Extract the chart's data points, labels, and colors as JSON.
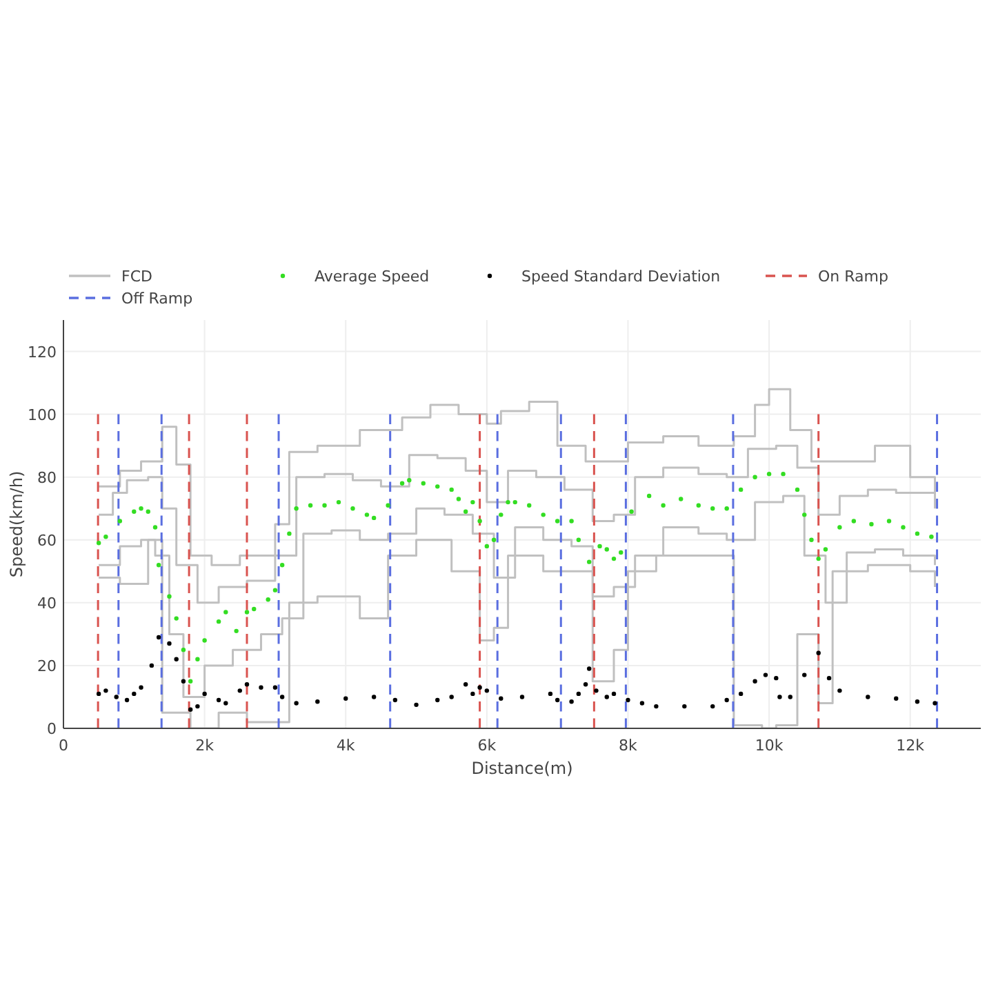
{
  "chart_data": {
    "type": "step",
    "xlabel": "Distance(m)",
    "ylabel": "Speed(km/h)",
    "xlim": [
      0,
      13000
    ],
    "ylim": [
      0,
      130
    ],
    "xticks": [
      0,
      {
        "value": 2000,
        "label": "2k"
      },
      {
        "value": 4000,
        "label": "4k"
      },
      {
        "value": 6000,
        "label": "6k"
      },
      {
        "value": 8000,
        "label": "8k"
      },
      {
        "value": 10000,
        "label": "10k"
      },
      {
        "value": 12000,
        "label": "12k"
      }
    ],
    "yticks": [
      0,
      20,
      40,
      60,
      80,
      100,
      120
    ],
    "grid": true,
    "legend": "top",
    "series": [
      {
        "name": "FCD",
        "color": "#c0c0c0",
        "x": [
          500,
          800,
          1100,
          1400,
          1600,
          1800,
          2100,
          2500,
          3000,
          3200,
          3600,
          4200,
          4800,
          5200,
          5600,
          6000,
          6200,
          6600,
          7000,
          7400,
          8000,
          8500,
          9000,
          9500,
          9800,
          10000,
          10300,
          10600,
          11000,
          11500,
          12000,
          12350
        ],
        "values": [
          77,
          82,
          85,
          96,
          84,
          55,
          52,
          55,
          65,
          88,
          90,
          95,
          99,
          103,
          100,
          97,
          101,
          104,
          90,
          85,
          91,
          93,
          90,
          93,
          103,
          108,
          95,
          85,
          85,
          90,
          80,
          75
        ]
      },
      {
        "color": "#c0c0c0",
        "x": [
          500,
          800,
          1200,
          1400,
          1800,
          2200,
          2600,
          3000,
          3200,
          3600,
          4200,
          4600,
          5000,
          5500,
          5900,
          6100,
          6300,
          6800,
          7200,
          7500,
          7800,
          8000,
          8400,
          9000,
          9500,
          9900,
          10100,
          10400,
          10700,
          10900,
          11400,
          12000,
          12350
        ],
        "values": [
          48,
          46,
          60,
          5,
          0,
          5,
          2,
          2,
          40,
          42,
          35,
          55,
          60,
          50,
          28,
          32,
          55,
          50,
          50,
          15,
          25,
          50,
          55,
          55,
          1,
          0,
          1,
          30,
          8,
          50,
          52,
          50,
          45
        ]
      },
      {
        "color": "#c0c0c0",
        "x": [
          500,
          700,
          900,
          1200,
          1400,
          1600,
          1900,
          2200,
          2600,
          3000,
          3300,
          3700,
          4100,
          4500,
          4900,
          5300,
          5700,
          6000,
          6300,
          6700,
          7100,
          7500,
          7800,
          8100,
          8500,
          9000,
          9400,
          9700,
          10100,
          10400,
          10700,
          11000,
          11400,
          11800,
          12350
        ],
        "values": [
          68,
          75,
          79,
          80,
          70,
          52,
          40,
          45,
          47,
          55,
          80,
          81,
          79,
          77,
          87,
          86,
          82,
          72,
          82,
          80,
          76,
          66,
          68,
          80,
          83,
          81,
          80,
          89,
          90,
          83,
          68,
          74,
          76,
          75,
          70
        ]
      },
      {
        "color": "#c0c0c0",
        "x": [
          500,
          800,
          1100,
          1300,
          1500,
          1700,
          2000,
          2400,
          2800,
          3100,
          3400,
          3800,
          4200,
          4600,
          5000,
          5400,
          5800,
          6100,
          6400,
          6800,
          7200,
          7500,
          7800,
          8100,
          8500,
          9000,
          9400,
          9800,
          10200,
          10500,
          10800,
          11100,
          11500,
          11900,
          12350
        ],
        "values": [
          52,
          58,
          60,
          55,
          30,
          10,
          20,
          25,
          30,
          35,
          62,
          63,
          60,
          62,
          70,
          68,
          62,
          48,
          64,
          60,
          58,
          42,
          45,
          55,
          64,
          62,
          60,
          72,
          74,
          55,
          40,
          56,
          57,
          55,
          52
        ]
      },
      {
        "type": "line",
        "name": "On Ramp",
        "color": "#d9534f",
        "line_style": "dashed",
        "x": [
          490,
          490,
          null,
          1780,
          1780,
          null,
          2600,
          2600,
          null,
          5900,
          5900,
          null,
          7520,
          7520,
          null,
          10700,
          10700
        ],
        "values": [
          0,
          100,
          null,
          0,
          100,
          null,
          0,
          100,
          null,
          0,
          100,
          null,
          0,
          100,
          null,
          0,
          100
        ]
      },
      {
        "type": "line",
        "name": "Off Ramp",
        "color": "#5a6ee0",
        "line_style": "dashed",
        "x": [
          780,
          780,
          null,
          1390,
          1390,
          null,
          3050,
          3050,
          null,
          4630,
          4630,
          null,
          6150,
          6150,
          null,
          7050,
          7050,
          null,
          7970,
          7970,
          null,
          9490,
          9490,
          null,
          12380,
          12380
        ],
        "values": [
          0,
          100,
          null,
          0,
          100,
          null,
          0,
          100,
          null,
          0,
          100,
          null,
          0,
          100,
          null,
          0,
          100,
          null,
          0,
          100,
          null,
          0,
          100,
          null,
          0,
          100
        ]
      },
      {
        "type": "scatter",
        "name": "Average Speed",
        "color": "#33dd22",
        "marker": "circle",
        "x": [
          500,
          600,
          800,
          1000,
          1100,
          1200,
          1300,
          1350,
          1500,
          1600,
          1700,
          1800,
          1900,
          2000,
          2200,
          2300,
          2450,
          2600,
          2700,
          2900,
          3000,
          3100,
          3200,
          3300,
          3500,
          3700,
          3900,
          4100,
          4300,
          4400,
          4600,
          4800,
          4900,
          5100,
          5300,
          5500,
          5600,
          5700,
          5800,
          5900,
          6000,
          6100,
          6200,
          6300,
          6400,
          6600,
          6800,
          7000,
          7200,
          7300,
          7450,
          7600,
          7700,
          7800,
          7900,
          8050,
          8300,
          8500,
          8750,
          9000,
          9200,
          9400,
          9600,
          9800,
          10000,
          10200,
          10400,
          10500,
          10600,
          10700,
          10800,
          11000,
          11200,
          11450,
          11700,
          11900,
          12100,
          12300
        ],
        "values": [
          59,
          61,
          66,
          69,
          70,
          69,
          64,
          52,
          42,
          35,
          25,
          15,
          22,
          28,
          34,
          37,
          31,
          37,
          38,
          41,
          44,
          52,
          62,
          70,
          71,
          71,
          72,
          70,
          68,
          67,
          71,
          78,
          79,
          78,
          77,
          76,
          73,
          69,
          72,
          66,
          58,
          60,
          68,
          72,
          72,
          71,
          68,
          66,
          66,
          60,
          53,
          58,
          57,
          54,
          56,
          69,
          74,
          71,
          73,
          71,
          70,
          70,
          76,
          80,
          81,
          81,
          76,
          68,
          60,
          54,
          57,
          64,
          66,
          65,
          66,
          64,
          62,
          61
        ]
      },
      {
        "type": "scatter",
        "name": "Speed Standard Deviation",
        "color": "#000000",
        "marker": "circle",
        "x": [
          500,
          600,
          750,
          900,
          1000,
          1100,
          1250,
          1350,
          1500,
          1600,
          1700,
          1800,
          1900,
          2000,
          2200,
          2300,
          2500,
          2600,
          2800,
          3000,
          3100,
          3300,
          3600,
          4000,
          4400,
          4700,
          5000,
          5300,
          5500,
          5700,
          5800,
          5900,
          6000,
          6200,
          6500,
          6900,
          7000,
          7200,
          7300,
          7400,
          7450,
          7550,
          7700,
          7800,
          8000,
          8200,
          8400,
          8800,
          9200,
          9400,
          9600,
          9800,
          9950,
          10100,
          10150,
          10300,
          10500,
          10700,
          10850,
          11000,
          11400,
          11800,
          12100,
          12350
        ],
        "values": [
          11,
          12,
          10,
          9,
          11,
          13,
          20,
          29,
          27,
          22,
          15,
          6,
          7,
          11,
          9,
          8,
          12,
          14,
          13,
          13,
          10,
          8,
          8.5,
          9.5,
          10,
          9,
          7.5,
          9,
          10,
          14,
          11,
          13,
          12,
          9.5,
          10,
          11,
          9,
          8.5,
          11,
          14,
          19,
          12,
          10,
          11,
          9,
          8,
          7,
          7,
          7,
          9,
          11,
          15,
          17,
          16,
          10,
          10,
          17,
          24,
          16,
          12,
          10,
          9.5,
          8.5,
          8
        ]
      }
    ]
  }
}
